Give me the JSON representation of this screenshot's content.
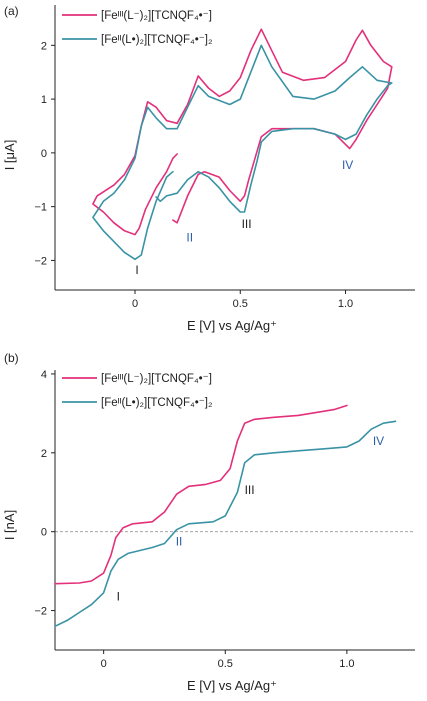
{
  "chart_data": [
    {
      "type": "line",
      "panel_label": "(a)",
      "xlabel": "E [V] vs Ag/Ag⁺",
      "ylabel": "I [μA]",
      "xlim": [
        -0.38,
        1.33
      ],
      "ylim": [
        -2.55,
        2.75
      ],
      "x_ticks": [
        0,
        0.5,
        1.0
      ],
      "x_tick_labels": [
        "0",
        "0.5",
        "1.0"
      ],
      "y_ticks": [
        -2,
        -1,
        0,
        1,
        2
      ],
      "y_tick_labels": [
        "−2",
        "−1",
        "0",
        "1",
        "2"
      ],
      "legend_position": "top-left",
      "series": [
        {
          "name": "[Feᴵᴵᴵ(L⁻)₂][TCNQF₄•⁻]",
          "color": "#e3307a",
          "points": [
            [
              0.2,
              -0.02
            ],
            [
              0.18,
              -0.1
            ],
            [
              0.15,
              -0.35
            ],
            [
              0.1,
              -0.65
            ],
            [
              0.05,
              -1.05
            ],
            [
              0.02,
              -1.4
            ],
            [
              0.0,
              -1.52
            ],
            [
              -0.05,
              -1.45
            ],
            [
              -0.1,
              -1.3
            ],
            [
              -0.15,
              -1.1
            ],
            [
              -0.2,
              -0.95
            ],
            [
              -0.18,
              -0.8
            ],
            [
              -0.1,
              -0.6
            ],
            [
              -0.05,
              -0.4
            ],
            [
              0.0,
              -0.05
            ],
            [
              0.03,
              0.5
            ],
            [
              0.06,
              0.95
            ],
            [
              0.1,
              0.85
            ],
            [
              0.15,
              0.6
            ],
            [
              0.2,
              0.55
            ],
            [
              0.25,
              0.9
            ],
            [
              0.3,
              1.43
            ],
            [
              0.35,
              1.2
            ],
            [
              0.4,
              1.05
            ],
            [
              0.45,
              1.15
            ],
            [
              0.5,
              1.4
            ],
            [
              0.55,
              1.9
            ],
            [
              0.6,
              2.3
            ],
            [
              0.65,
              1.9
            ],
            [
              0.7,
              1.5
            ],
            [
              0.8,
              1.35
            ],
            [
              0.9,
              1.4
            ],
            [
              1.0,
              1.7
            ],
            [
              1.05,
              2.1
            ],
            [
              1.08,
              2.28
            ],
            [
              1.12,
              2.0
            ],
            [
              1.18,
              1.7
            ],
            [
              1.22,
              1.6
            ],
            [
              1.2,
              1.2
            ],
            [
              1.15,
              0.9
            ],
            [
              1.1,
              0.6
            ],
            [
              1.05,
              0.25
            ],
            [
              1.02,
              0.08
            ],
            [
              0.95,
              0.35
            ],
            [
              0.85,
              0.45
            ],
            [
              0.75,
              0.45
            ],
            [
              0.65,
              0.45
            ],
            [
              0.6,
              0.3
            ],
            [
              0.57,
              -0.1
            ],
            [
              0.54,
              -0.5
            ],
            [
              0.52,
              -0.8
            ],
            [
              0.5,
              -0.9
            ],
            [
              0.45,
              -0.7
            ],
            [
              0.4,
              -0.45
            ],
            [
              0.33,
              -0.35
            ],
            [
              0.3,
              -0.4
            ],
            [
              0.25,
              -0.8
            ],
            [
              0.2,
              -1.3
            ],
            [
              0.18,
              -1.25
            ]
          ]
        },
        {
          "name": "[Feᴵᴵ(L•)₂][TCNQF₄•⁻]₂",
          "color": "#3a93a5",
          "points": [
            [
              0.1,
              -0.82
            ],
            [
              0.12,
              -0.9
            ],
            [
              0.15,
              -0.8
            ],
            [
              0.2,
              -0.75
            ],
            [
              0.25,
              -0.5
            ],
            [
              0.3,
              -0.35
            ],
            [
              0.35,
              -0.45
            ],
            [
              0.4,
              -0.65
            ],
            [
              0.45,
              -0.9
            ],
            [
              0.5,
              -1.1
            ],
            [
              0.52,
              -1.1
            ],
            [
              0.55,
              -0.6
            ],
            [
              0.58,
              -0.15
            ],
            [
              0.6,
              0.2
            ],
            [
              0.65,
              0.4
            ],
            [
              0.75,
              0.45
            ],
            [
              0.85,
              0.45
            ],
            [
              0.95,
              0.35
            ],
            [
              1.0,
              0.25
            ],
            [
              1.05,
              0.35
            ],
            [
              1.1,
              0.7
            ],
            [
              1.15,
              1.0
            ],
            [
              1.2,
              1.25
            ],
            [
              1.22,
              1.3
            ],
            [
              1.15,
              1.35
            ],
            [
              1.08,
              1.6
            ],
            [
              1.02,
              1.4
            ],
            [
              0.95,
              1.15
            ],
            [
              0.85,
              1.0
            ],
            [
              0.75,
              1.05
            ],
            [
              0.65,
              1.6
            ],
            [
              0.6,
              2.0
            ],
            [
              0.55,
              1.5
            ],
            [
              0.5,
              1.0
            ],
            [
              0.45,
              0.9
            ],
            [
              0.35,
              1.05
            ],
            [
              0.3,
              1.25
            ],
            [
              0.25,
              0.85
            ],
            [
              0.2,
              0.45
            ],
            [
              0.15,
              0.45
            ],
            [
              0.1,
              0.65
            ],
            [
              0.06,
              0.85
            ],
            [
              0.03,
              0.5
            ],
            [
              0.0,
              -0.1
            ],
            [
              -0.05,
              -0.5
            ],
            [
              -0.1,
              -0.75
            ],
            [
              -0.15,
              -0.9
            ],
            [
              -0.2,
              -1.2
            ],
            [
              -0.15,
              -1.45
            ],
            [
              -0.1,
              -1.65
            ],
            [
              -0.05,
              -1.85
            ],
            [
              0.0,
              -1.98
            ],
            [
              0.03,
              -1.9
            ],
            [
              0.06,
              -1.4
            ],
            [
              0.1,
              -0.9
            ],
            [
              0.15,
              -0.45
            ],
            [
              0.18,
              -0.35
            ]
          ]
        }
      ],
      "peak_labels": [
        {
          "text": "I",
          "x": 0.01,
          "y": -2.25,
          "color": "#222222"
        },
        {
          "text": "II",
          "x": 0.26,
          "y": -1.65,
          "color": "#2b5ea8"
        },
        {
          "text": "III",
          "x": 0.53,
          "y": -1.4,
          "color": "#222222"
        },
        {
          "text": "IV",
          "x": 1.01,
          "y": -0.3,
          "color": "#2b5ea8"
        }
      ]
    },
    {
      "type": "line",
      "panel_label": "(b)",
      "xlabel": "E [V] vs Ag/Ag⁺",
      "ylabel": "I [nA]",
      "xlim": [
        -0.2,
        1.28
      ],
      "ylim": [
        -3.0,
        4.1
      ],
      "x_ticks": [
        0,
        0.5,
        1.0
      ],
      "x_tick_labels": [
        "0",
        "0.5",
        "1.0"
      ],
      "y_ticks": [
        -2,
        0,
        2,
        4
      ],
      "y_tick_labels": [
        "−2",
        "0",
        "2",
        "4"
      ],
      "zero_line": true,
      "legend_position": "top-left",
      "series": [
        {
          "name": "[Feᴵᴵᴵ(L⁻)₂][TCNQF₄•⁻]",
          "color": "#e3307a",
          "points": [
            [
              -0.2,
              -1.32
            ],
            [
              -0.1,
              -1.3
            ],
            [
              -0.05,
              -1.25
            ],
            [
              0.0,
              -1.05
            ],
            [
              0.03,
              -0.6
            ],
            [
              0.05,
              -0.15
            ],
            [
              0.08,
              0.1
            ],
            [
              0.12,
              0.2
            ],
            [
              0.2,
              0.25
            ],
            [
              0.25,
              0.5
            ],
            [
              0.3,
              0.95
            ],
            [
              0.35,
              1.15
            ],
            [
              0.42,
              1.2
            ],
            [
              0.48,
              1.3
            ],
            [
              0.52,
              1.6
            ],
            [
              0.55,
              2.3
            ],
            [
              0.58,
              2.75
            ],
            [
              0.62,
              2.85
            ],
            [
              0.7,
              2.9
            ],
            [
              0.8,
              2.95
            ],
            [
              0.9,
              3.05
            ],
            [
              0.95,
              3.1
            ],
            [
              1.0,
              3.2
            ]
          ]
        },
        {
          "name": "[Feᴵᴵ(L•)₂][TCNQF₄•⁻]₂",
          "color": "#3a93a5",
          "points": [
            [
              -0.2,
              -2.4
            ],
            [
              -0.15,
              -2.25
            ],
            [
              -0.1,
              -2.05
            ],
            [
              -0.05,
              -1.85
            ],
            [
              0.0,
              -1.55
            ],
            [
              0.03,
              -1.0
            ],
            [
              0.06,
              -0.7
            ],
            [
              0.1,
              -0.55
            ],
            [
              0.2,
              -0.4
            ],
            [
              0.25,
              -0.3
            ],
            [
              0.3,
              0.05
            ],
            [
              0.35,
              0.2
            ],
            [
              0.45,
              0.25
            ],
            [
              0.5,
              0.4
            ],
            [
              0.55,
              1.0
            ],
            [
              0.58,
              1.75
            ],
            [
              0.62,
              1.95
            ],
            [
              0.7,
              2.0
            ],
            [
              0.8,
              2.05
            ],
            [
              0.9,
              2.1
            ],
            [
              1.0,
              2.15
            ],
            [
              1.05,
              2.3
            ],
            [
              1.1,
              2.6
            ],
            [
              1.15,
              2.75
            ],
            [
              1.2,
              2.8
            ]
          ]
        }
      ],
      "peak_labels": [
        {
          "text": "I",
          "x": 0.06,
          "y": -1.75,
          "color": "#222222"
        },
        {
          "text": "II",
          "x": 0.31,
          "y": -0.35,
          "color": "#2b5ea8"
        },
        {
          "text": "III",
          "x": 0.6,
          "y": 0.95,
          "color": "#222222"
        },
        {
          "text": "IV",
          "x": 1.13,
          "y": 2.2,
          "color": "#2b5ea8"
        }
      ]
    }
  ]
}
